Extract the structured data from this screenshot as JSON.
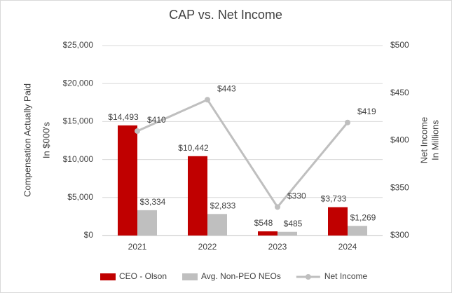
{
  "chart_data": {
    "type": "bar",
    "title": "CAP vs. Net Income",
    "ylabel": [
      "Compensation Actually Paid",
      "In $000's"
    ],
    "y2label": [
      "Net Income",
      "In Millions"
    ],
    "categories": [
      "2021",
      "2022",
      "2023",
      "2024"
    ],
    "series": [
      {
        "name": "CEO - Olson",
        "type": "bar",
        "color": "#c00000",
        "values": [
          14493,
          10442,
          548,
          3733
        ],
        "value_labels": [
          "$14,493",
          "$10,442",
          "$548",
          "$3,733"
        ]
      },
      {
        "name": "Avg. Non-PEO NEOs",
        "type": "bar",
        "color": "#bfbfbf",
        "values": [
          3334,
          2833,
          485,
          1269
        ],
        "value_labels": [
          "$3,334",
          "$2,833",
          "$485",
          "$1,269"
        ]
      },
      {
        "name": "Net Income",
        "type": "line",
        "axis": "y2",
        "color": "#bfbfbf",
        "values": [
          410,
          443,
          330,
          419
        ],
        "value_labels": [
          "$410",
          "$443",
          "$330",
          "$419"
        ]
      }
    ],
    "ylim": [
      0,
      25000
    ],
    "yticks": [
      {
        "value": 0,
        "label": "$0"
      },
      {
        "value": 5000,
        "label": "$5,000"
      },
      {
        "value": 10000,
        "label": "$10,000"
      },
      {
        "value": 15000,
        "label": "$15,000"
      },
      {
        "value": 20000,
        "label": "$20,000"
      },
      {
        "value": 25000,
        "label": "$25,000"
      }
    ],
    "y2lim": [
      300,
      500
    ],
    "y2ticks": [
      {
        "value": 300,
        "label": "$300"
      },
      {
        "value": 350,
        "label": "$350"
      },
      {
        "value": 400,
        "label": "$400"
      },
      {
        "value": 450,
        "label": "$450"
      },
      {
        "value": 500,
        "label": "$500"
      }
    ],
    "grid": true,
    "legend": "bottom"
  }
}
